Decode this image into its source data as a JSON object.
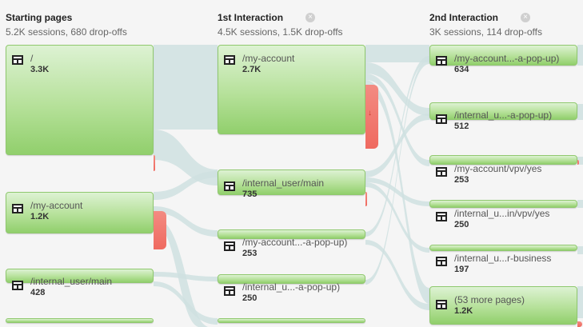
{
  "columns": [
    {
      "title": "Starting pages",
      "stats": "5.2K sessions, 680 drop-offs"
    },
    {
      "title": "1st Interaction",
      "stats": "4.5K sessions, 1.5K drop-offs",
      "remove_icon": "×"
    },
    {
      "title": "2nd Interaction",
      "stats": "3K sessions, 114 drop-offs",
      "remove_icon": "×"
    }
  ],
  "starting_nodes": [
    {
      "label": "/",
      "count": "3.3K"
    },
    {
      "label": "/my-account",
      "count": "1.2K"
    },
    {
      "label": "/internal_user/main",
      "count": "428"
    }
  ],
  "first_nodes": [
    {
      "label": "/my-account",
      "count": "2.7K"
    },
    {
      "label": "/internal_user/main",
      "count": "735"
    },
    {
      "label": "/my-account...-a-pop-up)",
      "count": "253"
    },
    {
      "label": "/internal_u...-a-pop-up)",
      "count": "250"
    }
  ],
  "second_nodes": [
    {
      "label": "/my-account...-a-pop-up)",
      "count": "634"
    },
    {
      "label": "/internal_u...-a-pop-up)",
      "count": "512"
    },
    {
      "label": "/my-account/vpv/yes",
      "count": "253"
    },
    {
      "label": "/internal_u...in/vpv/yes",
      "count": "250"
    },
    {
      "label": "/internal_u...r-business",
      "count": "197"
    },
    {
      "label": "(53 more pages)",
      "count": "1.2K"
    }
  ],
  "icons": {
    "page": "page-layout-icon",
    "dropoff_arrow": "↓"
  },
  "colors": {
    "node_green": "#a8db8a",
    "dropoff_red": "#ef6a60",
    "flow_gray": "#c8dcdc"
  }
}
